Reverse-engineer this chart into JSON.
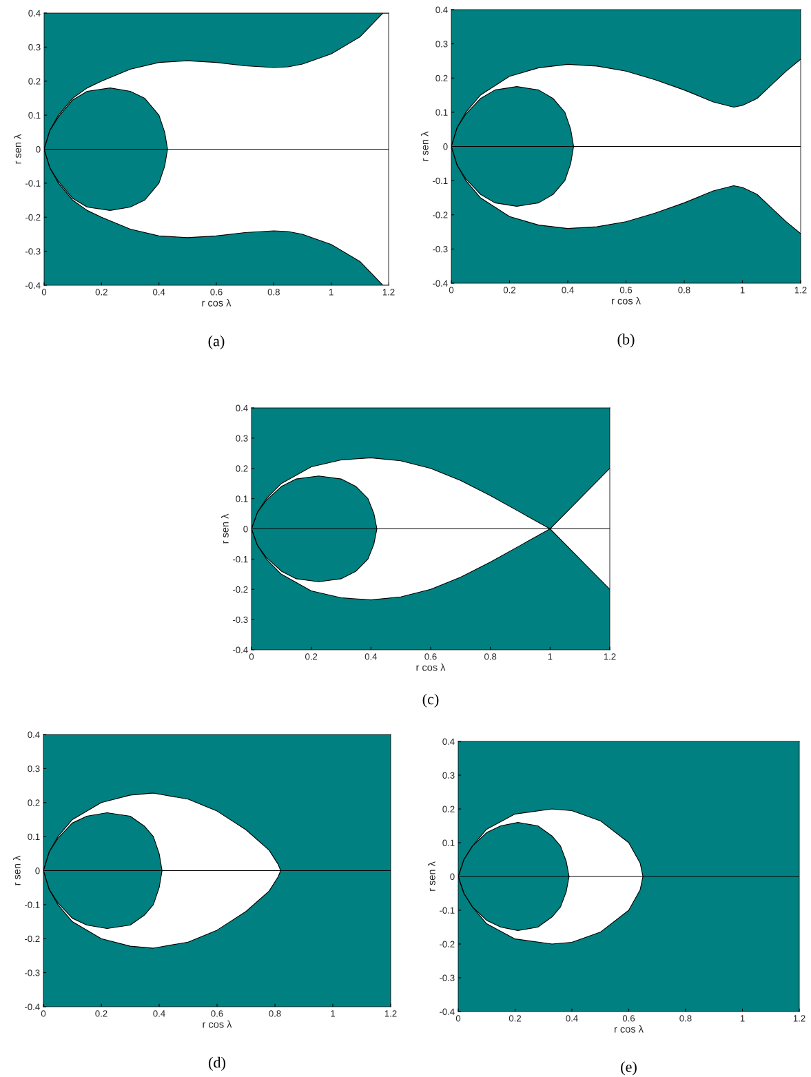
{
  "chart_data": [
    {
      "type": "area",
      "title": "(a)",
      "xlabel": "r cos λ",
      "ylabel": "r sen λ",
      "xlim": [
        0,
        1.2
      ],
      "ylim": [
        -0.4,
        0.4
      ],
      "xticks": [
        0,
        0.2,
        0.4,
        0.6,
        0.8,
        1,
        1.2
      ],
      "yticks": [
        -0.4,
        -0.3,
        -0.2,
        -0.1,
        0,
        0.1,
        0.2,
        0.3,
        0.4
      ],
      "grid": false,
      "bands": [
        {
          "axis": "y",
          "from": -0.4,
          "to": 0.4,
          "color": "#008080"
        }
      ],
      "ref_lines": [
        {
          "axis": "y",
          "value": 0,
          "color": "#000000"
        }
      ],
      "series": [
        {
          "color": "#ffffff",
          "x": [
            0,
            0.02,
            0.05,
            0.1,
            0.15,
            0.2,
            0.3,
            0.4,
            0.5,
            0.6,
            0.7,
            0.8,
            0.85,
            0.9,
            1.0,
            1.1,
            1.18,
            1.2
          ],
          "values": [
            0,
            0.055,
            0.1,
            0.15,
            0.18,
            0.2,
            0.235,
            0.255,
            0.26,
            0.255,
            0.245,
            0.24,
            0.242,
            0.25,
            0.28,
            0.33,
            0.4,
            0.4
          ]
        },
        {
          "color": "#ffffff",
          "x": [
            0,
            0.02,
            0.05,
            0.1,
            0.15,
            0.2,
            0.3,
            0.4,
            0.5,
            0.6,
            0.7,
            0.8,
            0.85,
            0.9,
            1.0,
            1.1,
            1.18,
            1.2
          ],
          "values": [
            0,
            -0.055,
            -0.1,
            -0.15,
            -0.18,
            -0.2,
            -0.235,
            -0.255,
            -0.26,
            -0.255,
            -0.245,
            -0.24,
            -0.242,
            -0.25,
            -0.28,
            -0.33,
            -0.4,
            -0.4
          ]
        },
        {
          "color": "#008080",
          "x": [
            0,
            0.02,
            0.05,
            0.1,
            0.15,
            0.23,
            0.3,
            0.35,
            0.4,
            0.42,
            0.43
          ],
          "values": [
            0,
            0.055,
            0.095,
            0.145,
            0.17,
            0.18,
            0.17,
            0.15,
            0.1,
            0.05,
            0
          ]
        },
        {
          "color": "#008080",
          "x": [
            0,
            0.02,
            0.05,
            0.1,
            0.15,
            0.23,
            0.3,
            0.35,
            0.4,
            0.42,
            0.43
          ],
          "values": [
            0,
            -0.055,
            -0.095,
            -0.145,
            -0.17,
            -0.18,
            -0.17,
            -0.15,
            -0.1,
            -0.05,
            0
          ]
        }
      ]
    },
    {
      "type": "area",
      "title": "(b)",
      "xlabel": "r cos λ",
      "ylabel": "r sen λ",
      "xlim": [
        0,
        1.2
      ],
      "ylim": [
        -0.4,
        0.4
      ],
      "xticks": [
        0,
        0.2,
        0.4,
        0.6,
        0.8,
        1,
        1.2
      ],
      "yticks": [
        -0.4,
        -0.3,
        -0.2,
        -0.1,
        0,
        0.1,
        0.2,
        0.3,
        0.4
      ],
      "grid": false,
      "bands": [
        {
          "axis": "y",
          "from": -0.4,
          "to": 0.4,
          "color": "#008080"
        }
      ],
      "ref_lines": [
        {
          "axis": "y",
          "value": 0,
          "color": "#000000"
        }
      ],
      "series": [
        {
          "color": "#ffffff",
          "x": [
            0,
            0.02,
            0.05,
            0.1,
            0.2,
            0.3,
            0.4,
            0.5,
            0.6,
            0.7,
            0.8,
            0.9,
            0.97,
            1.0,
            1.05,
            1.1,
            1.15,
            1.2
          ],
          "values": [
            0,
            0.055,
            0.1,
            0.15,
            0.205,
            0.23,
            0.24,
            0.235,
            0.22,
            0.195,
            0.165,
            0.13,
            0.115,
            0.12,
            0.14,
            0.18,
            0.22,
            0.255
          ]
        },
        {
          "color": "#ffffff",
          "x": [
            0,
            0.02,
            0.05,
            0.1,
            0.2,
            0.3,
            0.4,
            0.5,
            0.6,
            0.7,
            0.8,
            0.9,
            0.97,
            1.0,
            1.05,
            1.1,
            1.15,
            1.2
          ],
          "values": [
            0,
            -0.055,
            -0.1,
            -0.15,
            -0.205,
            -0.23,
            -0.24,
            -0.235,
            -0.22,
            -0.195,
            -0.165,
            -0.13,
            -0.115,
            -0.12,
            -0.14,
            -0.18,
            -0.22,
            -0.255
          ]
        },
        {
          "color": "#008080",
          "x": [
            0,
            0.02,
            0.05,
            0.1,
            0.15,
            0.225,
            0.3,
            0.35,
            0.39,
            0.41,
            0.42
          ],
          "values": [
            0,
            0.055,
            0.095,
            0.14,
            0.165,
            0.175,
            0.165,
            0.14,
            0.1,
            0.05,
            0
          ]
        },
        {
          "color": "#008080",
          "x": [
            0,
            0.02,
            0.05,
            0.1,
            0.15,
            0.225,
            0.3,
            0.35,
            0.39,
            0.41,
            0.42
          ],
          "values": [
            0,
            -0.055,
            -0.095,
            -0.14,
            -0.165,
            -0.175,
            -0.165,
            -0.14,
            -0.1,
            -0.05,
            0
          ]
        }
      ]
    },
    {
      "type": "area",
      "title": "(c)",
      "xlabel": "r cos λ",
      "ylabel": "r sen λ",
      "xlim": [
        0,
        1.2
      ],
      "ylim": [
        -0.4,
        0.4
      ],
      "xticks": [
        0,
        0.2,
        0.4,
        0.6,
        0.8,
        1,
        1.2
      ],
      "yticks": [
        -0.4,
        -0.3,
        -0.2,
        -0.1,
        0,
        0.1,
        0.2,
        0.3,
        0.4
      ],
      "grid": false,
      "bands": [
        {
          "axis": "y",
          "from": -0.4,
          "to": 0.4,
          "color": "#008080"
        }
      ],
      "ref_lines": [
        {
          "axis": "y",
          "value": 0,
          "color": "#000000"
        }
      ],
      "series": [
        {
          "color": "#ffffff",
          "x": [
            0,
            0.02,
            0.05,
            0.1,
            0.2,
            0.3,
            0.4,
            0.5,
            0.6,
            0.7,
            0.8,
            0.9,
            1.0,
            1.1,
            1.2
          ],
          "values": [
            0,
            0.055,
            0.1,
            0.15,
            0.205,
            0.228,
            0.235,
            0.225,
            0.2,
            0.16,
            0.11,
            0.055,
            0,
            0.1,
            0.2
          ]
        },
        {
          "color": "#ffffff",
          "x": [
            0,
            0.02,
            0.05,
            0.1,
            0.2,
            0.3,
            0.4,
            0.5,
            0.6,
            0.7,
            0.8,
            0.9,
            1.0,
            1.1,
            1.2
          ],
          "values": [
            0,
            -0.055,
            -0.1,
            -0.15,
            -0.205,
            -0.228,
            -0.235,
            -0.225,
            -0.2,
            -0.16,
            -0.11,
            -0.055,
            0,
            -0.1,
            -0.2
          ]
        },
        {
          "color": "#008080",
          "x": [
            0,
            0.02,
            0.05,
            0.1,
            0.15,
            0.225,
            0.3,
            0.35,
            0.39,
            0.41,
            0.42
          ],
          "values": [
            0,
            0.055,
            0.095,
            0.14,
            0.165,
            0.175,
            0.165,
            0.14,
            0.1,
            0.05,
            0
          ]
        },
        {
          "color": "#008080",
          "x": [
            0,
            0.02,
            0.05,
            0.1,
            0.15,
            0.225,
            0.3,
            0.35,
            0.39,
            0.41,
            0.42
          ],
          "values": [
            0,
            -0.055,
            -0.095,
            -0.14,
            -0.165,
            -0.175,
            -0.165,
            -0.14,
            -0.1,
            -0.05,
            0
          ]
        }
      ]
    },
    {
      "type": "area",
      "title": "(d)",
      "xlabel": "r cos λ",
      "ylabel": "r sen λ",
      "xlim": [
        0,
        1.2
      ],
      "ylim": [
        -0.4,
        0.4
      ],
      "xticks": [
        0,
        0.2,
        0.4,
        0.6,
        0.8,
        1,
        1.2
      ],
      "yticks": [
        -0.4,
        -0.3,
        -0.2,
        -0.1,
        0,
        0.1,
        0.2,
        0.3,
        0.4
      ],
      "grid": false,
      "bands": [
        {
          "axis": "y",
          "from": -0.4,
          "to": 0.4,
          "color": "#008080"
        }
      ],
      "ref_lines": [
        {
          "axis": "y",
          "value": 0,
          "color": "#000000"
        }
      ],
      "series": [
        {
          "color": "#ffffff",
          "x": [
            0,
            0.02,
            0.05,
            0.1,
            0.2,
            0.3,
            0.38,
            0.5,
            0.6,
            0.7,
            0.78,
            0.81,
            0.82
          ],
          "values": [
            0,
            0.055,
            0.1,
            0.15,
            0.2,
            0.222,
            0.228,
            0.21,
            0.175,
            0.12,
            0.06,
            0.02,
            0
          ]
        },
        {
          "color": "#ffffff",
          "x": [
            0,
            0.02,
            0.05,
            0.1,
            0.2,
            0.3,
            0.38,
            0.5,
            0.6,
            0.7,
            0.78,
            0.81,
            0.82
          ],
          "values": [
            0,
            -0.055,
            -0.1,
            -0.15,
            -0.2,
            -0.222,
            -0.228,
            -0.21,
            -0.175,
            -0.12,
            -0.06,
            -0.02,
            0
          ]
        },
        {
          "color": "#008080",
          "x": [
            0,
            0.02,
            0.05,
            0.1,
            0.15,
            0.22,
            0.3,
            0.35,
            0.38,
            0.4,
            0.41
          ],
          "values": [
            0,
            0.055,
            0.095,
            0.14,
            0.16,
            0.17,
            0.16,
            0.13,
            0.1,
            0.05,
            0
          ]
        },
        {
          "color": "#008080",
          "x": [
            0,
            0.02,
            0.05,
            0.1,
            0.15,
            0.22,
            0.3,
            0.35,
            0.38,
            0.4,
            0.41
          ],
          "values": [
            0,
            -0.055,
            -0.095,
            -0.14,
            -0.16,
            -0.17,
            -0.16,
            -0.13,
            -0.1,
            -0.05,
            0
          ]
        }
      ]
    },
    {
      "type": "area",
      "title": "(e)",
      "xlabel": "r cos λ",
      "ylabel": "r sen λ",
      "xlim": [
        0,
        1.2
      ],
      "ylim": [
        -0.4,
        0.4
      ],
      "xticks": [
        0,
        0.2,
        0.4,
        0.6,
        0.8,
        1,
        1.2
      ],
      "yticks": [
        -0.4,
        -0.3,
        -0.2,
        -0.1,
        0,
        0.1,
        0.2,
        0.3,
        0.4
      ],
      "grid": false,
      "bands": [
        {
          "axis": "y",
          "from": -0.4,
          "to": 0.4,
          "color": "#008080"
        }
      ],
      "ref_lines": [
        {
          "axis": "y",
          "value": 0,
          "color": "#000000"
        }
      ],
      "series": [
        {
          "color": "#ffffff",
          "x": [
            0,
            0.02,
            0.05,
            0.1,
            0.2,
            0.33,
            0.4,
            0.5,
            0.6,
            0.64,
            0.65
          ],
          "values": [
            0,
            0.05,
            0.09,
            0.14,
            0.185,
            0.2,
            0.195,
            0.165,
            0.1,
            0.04,
            0
          ]
        },
        {
          "color": "#ffffff",
          "x": [
            0,
            0.02,
            0.05,
            0.1,
            0.2,
            0.33,
            0.4,
            0.5,
            0.6,
            0.64,
            0.65
          ],
          "values": [
            0,
            -0.05,
            -0.09,
            -0.14,
            -0.185,
            -0.2,
            -0.195,
            -0.165,
            -0.1,
            -0.04,
            0
          ]
        },
        {
          "color": "#008080",
          "x": [
            0,
            0.02,
            0.05,
            0.1,
            0.15,
            0.21,
            0.28,
            0.33,
            0.36,
            0.38,
            0.39
          ],
          "values": [
            0,
            0.05,
            0.09,
            0.13,
            0.15,
            0.16,
            0.15,
            0.12,
            0.09,
            0.045,
            0
          ]
        },
        {
          "color": "#008080",
          "x": [
            0,
            0.02,
            0.05,
            0.1,
            0.15,
            0.21,
            0.28,
            0.33,
            0.36,
            0.38,
            0.39
          ],
          "values": [
            0,
            -0.05,
            -0.09,
            -0.13,
            -0.15,
            -0.16,
            -0.15,
            -0.12,
            -0.09,
            -0.045,
            0
          ]
        }
      ]
    }
  ]
}
